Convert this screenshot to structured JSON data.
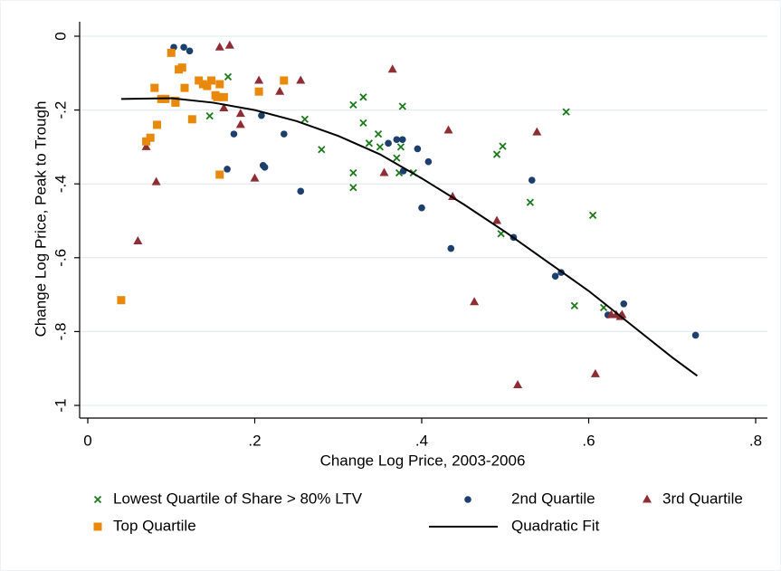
{
  "chart_data": {
    "type": "scatter",
    "x_label": "Change Log Price, 2003-2006",
    "y_label": "Change Log Price, Peak to Trough",
    "xlim": [
      0,
      0.8
    ],
    "ylim": [
      -1,
      0
    ],
    "xticks": [
      0,
      {
        "value": 0.2,
        "label": ".2"
      },
      {
        "value": 0.4,
        "label": ".4"
      },
      {
        "value": 0.6,
        "label": ".6"
      },
      {
        "value": 0.8,
        "label": ".8"
      }
    ],
    "yticks": [
      0,
      {
        "value": -0.2,
        "label": "-.2"
      },
      {
        "value": -0.4,
        "label": "-.4"
      },
      {
        "value": -0.6,
        "label": "-.6"
      },
      {
        "value": -0.8,
        "label": "-.8"
      },
      -1
    ],
    "grid": true,
    "series": [
      {
        "name": "Lowest Quartile of Share > 80% LTV",
        "color": "#1a7a1a",
        "marker": "x",
        "x": [
          0.168,
          0.146,
          0.26,
          0.28,
          0.318,
          0.318,
          0.318,
          0.33,
          0.33,
          0.337,
          0.348,
          0.35,
          0.37,
          0.373,
          0.375,
          0.377,
          0.39,
          0.49,
          0.495,
          0.497,
          0.53,
          0.573,
          0.605,
          0.583,
          0.618
        ],
        "y": [
          -0.11,
          -0.216,
          -0.225,
          -0.307,
          -0.186,
          -0.37,
          -0.41,
          -0.165,
          -0.235,
          -0.29,
          -0.265,
          -0.3,
          -0.33,
          -0.37,
          -0.3,
          -0.19,
          -0.37,
          -0.32,
          -0.535,
          -0.298,
          -0.45,
          -0.205,
          -0.485,
          -0.73,
          -0.735
        ]
      },
      {
        "name": "2nd Quartile",
        "color": "#1c3f6e",
        "marker": "circle",
        "x": [
          0.103,
          0.115,
          0.122,
          0.167,
          0.175,
          0.21,
          0.208,
          0.235,
          0.255,
          0.36,
          0.37,
          0.377,
          0.378,
          0.395,
          0.408,
          0.4,
          0.435,
          0.51,
          0.532,
          0.56,
          0.567,
          0.623,
          0.642,
          0.728,
          0.212
        ],
        "y": [
          -0.03,
          -0.03,
          -0.04,
          -0.36,
          -0.265,
          -0.35,
          -0.215,
          -0.265,
          -0.42,
          -0.29,
          -0.28,
          -0.28,
          -0.365,
          -0.305,
          -0.34,
          -0.465,
          -0.575,
          -0.545,
          -0.39,
          -0.65,
          -0.64,
          -0.755,
          -0.725,
          -0.81,
          -0.355
        ]
      },
      {
        "name": "3rd Quartile",
        "color": "#8f2d35",
        "marker": "triangle",
        "x": [
          0.06,
          0.07,
          0.082,
          0.158,
          0.17,
          0.163,
          0.183,
          0.183,
          0.205,
          0.2,
          0.23,
          0.255,
          0.355,
          0.365,
          0.432,
          0.437,
          0.463,
          0.49,
          0.515,
          0.538,
          0.608,
          0.627,
          0.633,
          0.638,
          0.64
        ],
        "y": [
          -0.555,
          -0.3,
          -0.395,
          -0.03,
          -0.025,
          -0.195,
          -0.21,
          -0.24,
          -0.12,
          -0.385,
          -0.15,
          -0.12,
          -0.37,
          -0.09,
          -0.255,
          -0.435,
          -0.72,
          -0.5,
          -0.945,
          -0.26,
          -0.915,
          -0.755,
          -0.755,
          -0.76,
          -0.755
        ]
      },
      {
        "name": "Top Quartile",
        "color": "#e8890c",
        "marker": "square",
        "x": [
          0.04,
          0.07,
          0.075,
          0.08,
          0.083,
          0.088,
          0.093,
          0.1,
          0.105,
          0.109,
          0.113,
          0.116,
          0.125,
          0.133,
          0.138,
          0.143,
          0.148,
          0.153,
          0.155,
          0.158,
          0.158,
          0.163,
          0.205,
          0.235,
          0.105
        ],
        "y": [
          -0.715,
          -0.285,
          -0.275,
          -0.14,
          -0.24,
          -0.17,
          -0.17,
          -0.045,
          -0.18,
          -0.09,
          -0.085,
          -0.14,
          -0.225,
          -0.12,
          -0.13,
          -0.135,
          -0.12,
          -0.16,
          -0.165,
          -0.13,
          -0.375,
          -0.165,
          -0.15,
          -0.12,
          -0.175
        ]
      },
      {
        "name": "Quadratic Fit",
        "color": "#000000",
        "marker": "line",
        "x": [
          0.04,
          0.1,
          0.15,
          0.2,
          0.25,
          0.3,
          0.35,
          0.4,
          0.45,
          0.5,
          0.55,
          0.6,
          0.65,
          0.7,
          0.73
        ],
        "y": [
          -0.17,
          -0.168,
          -0.18,
          -0.2,
          -0.23,
          -0.27,
          -0.32,
          -0.385,
          -0.455,
          -0.53,
          -0.61,
          -0.69,
          -0.78,
          -0.87,
          -0.92
        ]
      }
    ]
  }
}
